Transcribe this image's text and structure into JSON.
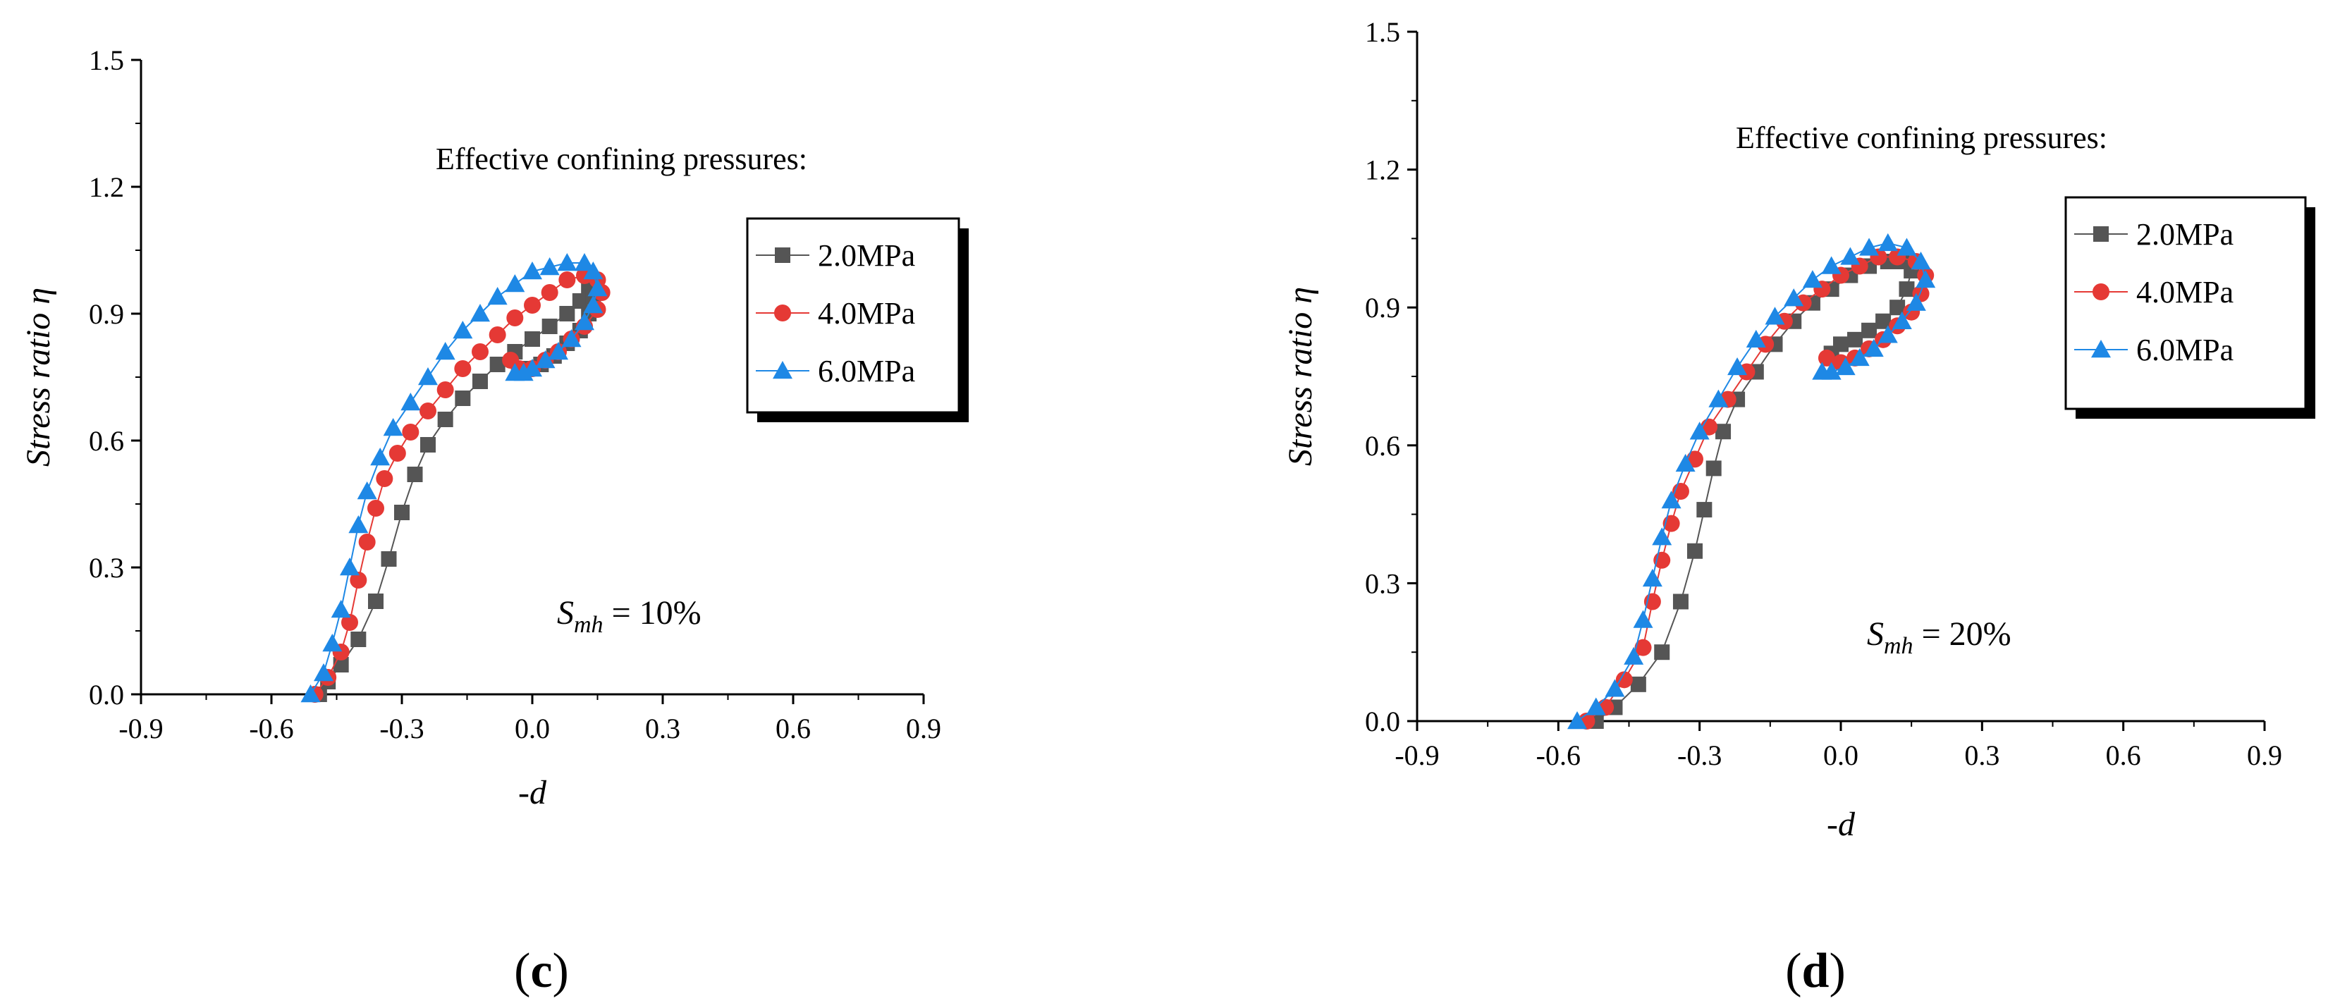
{
  "figure": {
    "panels": [
      "c",
      "d"
    ]
  },
  "chart_data": [
    {
      "type": "scatter",
      "panel": "c",
      "panel_label": "c",
      "xlabel": "-d",
      "ylabel": "Stress ratio  η",
      "xlim": [
        -0.9,
        0.9
      ],
      "ylim": [
        0.0,
        1.5
      ],
      "xticks": [
        "-0.9",
        "-0.6",
        "-0.3",
        "0.0",
        "0.3",
        "0.6",
        "0.9"
      ],
      "yticks": [
        "0.0",
        "0.3",
        "0.6",
        "0.9",
        "1.2",
        "1.5"
      ],
      "legend_title": "Effective confining pressures:",
      "annotation": {
        "prefix": "S",
        "sub": "mh",
        "suffix": " = 10%"
      },
      "series": [
        {
          "name": "2.0MPa",
          "color": "#555555",
          "marker": "square",
          "points": [
            [
              -0.49,
              0.0
            ],
            [
              -0.47,
              0.03
            ],
            [
              -0.44,
              0.07
            ],
            [
              -0.4,
              0.13
            ],
            [
              -0.36,
              0.22
            ],
            [
              -0.33,
              0.32
            ],
            [
              -0.3,
              0.43
            ],
            [
              -0.27,
              0.52
            ],
            [
              -0.24,
              0.59
            ],
            [
              -0.2,
              0.65
            ],
            [
              -0.16,
              0.7
            ],
            [
              -0.12,
              0.74
            ],
            [
              -0.08,
              0.78
            ],
            [
              -0.04,
              0.81
            ],
            [
              0.0,
              0.84
            ],
            [
              0.04,
              0.87
            ],
            [
              0.08,
              0.9
            ],
            [
              0.11,
              0.93
            ],
            [
              0.13,
              0.96
            ],
            [
              0.14,
              0.94
            ],
            [
              0.13,
              0.9
            ],
            [
              0.11,
              0.86
            ],
            [
              0.08,
              0.83
            ],
            [
              0.05,
              0.8
            ],
            [
              0.02,
              0.78
            ],
            [
              -0.01,
              0.77
            ],
            [
              -0.03,
              0.76
            ]
          ]
        },
        {
          "name": "4.0MPa",
          "color": "#e53935",
          "marker": "circle",
          "points": [
            [
              -0.5,
              0.0
            ],
            [
              -0.47,
              0.04
            ],
            [
              -0.44,
              0.1
            ],
            [
              -0.42,
              0.17
            ],
            [
              -0.4,
              0.27
            ],
            [
              -0.38,
              0.36
            ],
            [
              -0.36,
              0.44
            ],
            [
              -0.34,
              0.51
            ],
            [
              -0.31,
              0.57
            ],
            [
              -0.28,
              0.62
            ],
            [
              -0.24,
              0.67
            ],
            [
              -0.2,
              0.72
            ],
            [
              -0.16,
              0.77
            ],
            [
              -0.12,
              0.81
            ],
            [
              -0.08,
              0.85
            ],
            [
              -0.04,
              0.89
            ],
            [
              0.0,
              0.92
            ],
            [
              0.04,
              0.95
            ],
            [
              0.08,
              0.98
            ],
            [
              0.12,
              0.99
            ],
            [
              0.15,
              0.98
            ],
            [
              0.16,
              0.95
            ],
            [
              0.15,
              0.91
            ],
            [
              0.12,
              0.87
            ],
            [
              0.09,
              0.84
            ],
            [
              0.06,
              0.81
            ],
            [
              0.03,
              0.79
            ],
            [
              0.0,
              0.77
            ],
            [
              -0.03,
              0.77
            ],
            [
              -0.05,
              0.79
            ]
          ]
        },
        {
          "name": "6.0MPa",
          "color": "#1e88e5",
          "marker": "triangle",
          "points": [
            [
              -0.51,
              0.0
            ],
            [
              -0.48,
              0.05
            ],
            [
              -0.46,
              0.12
            ],
            [
              -0.44,
              0.2
            ],
            [
              -0.42,
              0.3
            ],
            [
              -0.4,
              0.4
            ],
            [
              -0.38,
              0.48
            ],
            [
              -0.35,
              0.56
            ],
            [
              -0.32,
              0.63
            ],
            [
              -0.28,
              0.69
            ],
            [
              -0.24,
              0.75
            ],
            [
              -0.2,
              0.81
            ],
            [
              -0.16,
              0.86
            ],
            [
              -0.12,
              0.9
            ],
            [
              -0.08,
              0.94
            ],
            [
              -0.04,
              0.97
            ],
            [
              0.0,
              1.0
            ],
            [
              0.04,
              1.01
            ],
            [
              0.08,
              1.02
            ],
            [
              0.12,
              1.02
            ],
            [
              0.14,
              1.0
            ],
            [
              0.15,
              0.96
            ],
            [
              0.14,
              0.92
            ],
            [
              0.12,
              0.88
            ],
            [
              0.09,
              0.84
            ],
            [
              0.06,
              0.81
            ],
            [
              0.03,
              0.79
            ],
            [
              0.0,
              0.77
            ],
            [
              -0.02,
              0.76
            ],
            [
              -0.04,
              0.76
            ]
          ]
        }
      ]
    },
    {
      "type": "scatter",
      "panel": "d",
      "panel_label": "d",
      "xlabel": "-d",
      "ylabel": "Stress ratio  η",
      "xlim": [
        -0.9,
        0.9
      ],
      "ylim": [
        0.0,
        1.5
      ],
      "xticks": [
        "-0.9",
        "-0.6",
        "-0.3",
        "0.0",
        "0.3",
        "0.6",
        "0.9"
      ],
      "yticks": [
        "0.0",
        "0.3",
        "0.6",
        "0.9",
        "1.2",
        "1.5"
      ],
      "legend_title": "Effective confining pressures:",
      "annotation": {
        "prefix": "S",
        "sub": "mh",
        "suffix": " = 20%"
      },
      "series": [
        {
          "name": "2.0MPa",
          "color": "#555555",
          "marker": "square",
          "points": [
            [
              -0.52,
              0.0
            ],
            [
              -0.48,
              0.03
            ],
            [
              -0.43,
              0.08
            ],
            [
              -0.38,
              0.15
            ],
            [
              -0.34,
              0.26
            ],
            [
              -0.31,
              0.37
            ],
            [
              -0.29,
              0.46
            ],
            [
              -0.27,
              0.55
            ],
            [
              -0.25,
              0.63
            ],
            [
              -0.22,
              0.7
            ],
            [
              -0.18,
              0.76
            ],
            [
              -0.14,
              0.82
            ],
            [
              -0.1,
              0.87
            ],
            [
              -0.06,
              0.91
            ],
            [
              -0.02,
              0.94
            ],
            [
              0.02,
              0.97
            ],
            [
              0.06,
              0.99
            ],
            [
              0.1,
              1.0
            ],
            [
              0.13,
              1.0
            ],
            [
              0.15,
              0.98
            ],
            [
              0.14,
              0.94
            ],
            [
              0.12,
              0.9
            ],
            [
              0.09,
              0.87
            ],
            [
              0.06,
              0.85
            ],
            [
              0.03,
              0.83
            ],
            [
              0.0,
              0.82
            ],
            [
              -0.02,
              0.8
            ]
          ]
        },
        {
          "name": "4.0MPa",
          "color": "#e53935",
          "marker": "circle",
          "points": [
            [
              -0.54,
              0.0
            ],
            [
              -0.5,
              0.03
            ],
            [
              -0.46,
              0.09
            ],
            [
              -0.42,
              0.16
            ],
            [
              -0.4,
              0.26
            ],
            [
              -0.38,
              0.35
            ],
            [
              -0.36,
              0.43
            ],
            [
              -0.34,
              0.5
            ],
            [
              -0.31,
              0.57
            ],
            [
              -0.28,
              0.64
            ],
            [
              -0.24,
              0.7
            ],
            [
              -0.2,
              0.76
            ],
            [
              -0.16,
              0.82
            ],
            [
              -0.12,
              0.87
            ],
            [
              -0.08,
              0.91
            ],
            [
              -0.04,
              0.94
            ],
            [
              0.0,
              0.97
            ],
            [
              0.04,
              0.99
            ],
            [
              0.08,
              1.01
            ],
            [
              0.12,
              1.01
            ],
            [
              0.16,
              1.0
            ],
            [
              0.18,
              0.97
            ],
            [
              0.17,
              0.93
            ],
            [
              0.15,
              0.89
            ],
            [
              0.12,
              0.86
            ],
            [
              0.09,
              0.83
            ],
            [
              0.06,
              0.81
            ],
            [
              0.03,
              0.79
            ],
            [
              0.0,
              0.78
            ],
            [
              -0.03,
              0.79
            ]
          ]
        },
        {
          "name": "6.0MPa",
          "color": "#1e88e5",
          "marker": "triangle",
          "points": [
            [
              -0.56,
              0.0
            ],
            [
              -0.52,
              0.03
            ],
            [
              -0.48,
              0.07
            ],
            [
              -0.44,
              0.14
            ],
            [
              -0.42,
              0.22
            ],
            [
              -0.4,
              0.31
            ],
            [
              -0.38,
              0.4
            ],
            [
              -0.36,
              0.48
            ],
            [
              -0.33,
              0.56
            ],
            [
              -0.3,
              0.63
            ],
            [
              -0.26,
              0.7
            ],
            [
              -0.22,
              0.77
            ],
            [
              -0.18,
              0.83
            ],
            [
              -0.14,
              0.88
            ],
            [
              -0.1,
              0.92
            ],
            [
              -0.06,
              0.96
            ],
            [
              -0.02,
              0.99
            ],
            [
              0.02,
              1.01
            ],
            [
              0.06,
              1.03
            ],
            [
              0.1,
              1.04
            ],
            [
              0.14,
              1.03
            ],
            [
              0.17,
              1.0
            ],
            [
              0.18,
              0.96
            ],
            [
              0.16,
              0.91
            ],
            [
              0.13,
              0.87
            ],
            [
              0.1,
              0.84
            ],
            [
              0.07,
              0.81
            ],
            [
              0.04,
              0.79
            ],
            [
              0.01,
              0.77
            ],
            [
              -0.02,
              0.76
            ],
            [
              -0.04,
              0.76
            ]
          ]
        }
      ]
    }
  ]
}
